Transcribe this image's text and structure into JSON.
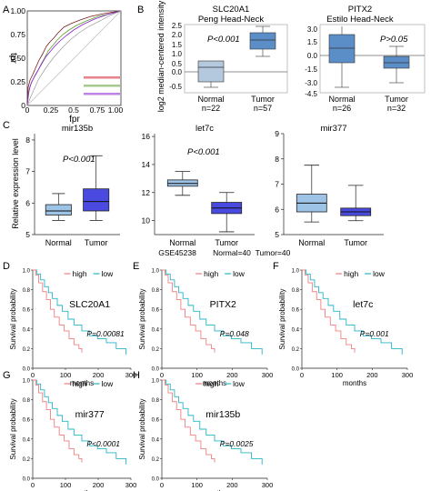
{
  "panel_letters": [
    "A",
    "B",
    "C",
    "D",
    "E",
    "F",
    "G",
    "H"
  ],
  "colors": {
    "high": "#f08080",
    "low": "#27b5c8",
    "box_blue": "#5b8ec6",
    "box_light": "#b4c8de",
    "box_c_light": "#9dc3e6",
    "box_c_dark": "#4a4ae0"
  },
  "panel_a": {
    "xlabel": "fpr",
    "ylabel": "tpr",
    "x_ticks": [
      "0",
      "0.25",
      "0.5",
      "0.75",
      "1.00"
    ],
    "y_ticks": [
      "0",
      "0.25",
      "0.50",
      "0.75",
      "1.00"
    ]
  },
  "panel_b": {
    "ylabel": "log2 median-centered intensity",
    "left": {
      "title": "SLC20A1",
      "subtitle": "Peng Head-Neck",
      "pvalue": "P<0.001",
      "y_ticks": [
        "-0.5",
        "0.0",
        "0.5",
        "1.0",
        "1.5",
        "2.0",
        "2.5"
      ],
      "groups": [
        "Normal",
        "Tumor"
      ],
      "ns": [
        "n=22",
        "n=57"
      ]
    },
    "right": {
      "title": "PITX2",
      "subtitle": "Estilo Head-Neck",
      "pvalue": "P>0.05",
      "y_ticks": [
        "3.0",
        "1.5",
        "0.0",
        "-1.5",
        "-3.0",
        "-4.5"
      ],
      "groups": [
        "Normal",
        "Tumor"
      ],
      "ns": [
        "n=26",
        "n=32"
      ]
    }
  },
  "panel_c": {
    "ylabel": "Relative expression level",
    "groups": [
      "Normal",
      "Tumor"
    ],
    "plots": [
      {
        "title": "mir135b",
        "pvalue": "P<0.001",
        "y_ticks": [
          "5",
          "6",
          "7",
          "8"
        ],
        "ylim": [
          5,
          8.2
        ],
        "boxes": [
          {
            "min": 5.45,
            "q1": 5.62,
            "median": 5.75,
            "q3": 5.95,
            "max": 6.3
          },
          {
            "min": 5.45,
            "q1": 5.75,
            "median": 6.05,
            "q3": 6.45,
            "max": 7.5
          }
        ]
      },
      {
        "title": "let7c",
        "pvalue": "P<0.001",
        "y_ticks": [
          "10",
          "12",
          "14",
          "16"
        ],
        "ylim": [
          9,
          16.2
        ],
        "boxes": [
          {
            "min": 11.8,
            "q1": 12.45,
            "median": 12.65,
            "q3": 12.9,
            "max": 13.5
          },
          {
            "min": 9.2,
            "q1": 10.5,
            "median": 10.9,
            "q3": 11.3,
            "max": 12.0
          }
        ],
        "footer": [
          "GSE45238",
          "Normal=40",
          "Tumor=40"
        ]
      },
      {
        "title": "mir377",
        "pvalue": "",
        "y_ticks": [
          "5",
          "6",
          "7",
          "8",
          "9"
        ],
        "ylim": [
          5,
          9
        ],
        "boxes": [
          {
            "min": 5.5,
            "q1": 5.9,
            "median": 6.25,
            "q3": 6.6,
            "max": 7.75
          },
          {
            "min": 5.55,
            "q1": 5.75,
            "median": 5.9,
            "q3": 6.05,
            "max": 6.95
          }
        ]
      }
    ]
  },
  "km": {
    "ylabel": "Survival probability",
    "xlabel": "months",
    "legend_high": "high",
    "legend_low": "low",
    "x_ticks": [
      "0",
      "100",
      "200",
      "300"
    ],
    "y_ticks": [
      "0.0",
      "0.2",
      "0.4",
      "0.6",
      "0.8",
      "1.0"
    ],
    "panels": [
      {
        "letter": "D",
        "gene": "SLC20A1",
        "pvalue": "P=0.00081"
      },
      {
        "letter": "E",
        "gene": "PITX2",
        "pvalue": "P=0.048"
      },
      {
        "letter": "F",
        "gene": "let7c",
        "pvalue": "P=0.001"
      },
      {
        "letter": "G",
        "gene": "mir377",
        "pvalue": "P<0.0001"
      },
      {
        "letter": "H",
        "gene": "mir135b",
        "pvalue": "P=0.0025"
      }
    ]
  }
}
